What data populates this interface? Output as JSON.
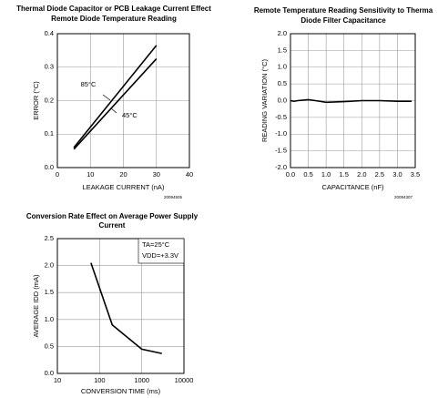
{
  "chart_data": [
    {
      "type": "line",
      "title": [
        "Thermal Diode Capacitor or PCB Leakage Current Effect",
        "Remote Diode Temperature Reading"
      ],
      "xlabel": "LEAKAGE CURRENT (nA)",
      "ylabel": "ERROR (°C)",
      "x": [
        5,
        30
      ],
      "series": [
        {
          "name": "85°C",
          "color": "#000000",
          "values": [
            0.06,
            0.365
          ]
        },
        {
          "name": "45°C",
          "color": "#000000",
          "values": [
            0.055,
            0.325
          ]
        }
      ],
      "xlim": [
        0,
        40
      ],
      "xticks": [
        0,
        10,
        20,
        30,
        40
      ],
      "ylim": [
        0,
        0.4
      ],
      "yticks": [
        {
          "value": 0,
          "label": "0.0"
        },
        0.1,
        0.2,
        0.3,
        0.4
      ],
      "grid": true,
      "code": "20094505"
    },
    {
      "type": "line",
      "title": [
        "Remote Temperature Reading Sensitivity to Therma",
        "Diode Filter Capacitance"
      ],
      "xlabel": "CAPACITANCE (nF)",
      "ylabel": "READING VARIATION (°C)",
      "x": [
        0,
        0.1,
        0.2,
        0.5,
        0.7,
        1.0,
        1.5,
        2.0,
        2.5,
        3.0,
        3.4
      ],
      "series": [
        {
          "color": "#000000",
          "values": [
            0,
            -0.02,
            0,
            0.03,
            0,
            -0.05,
            -0.03,
            0,
            0,
            -0.02,
            -0.02
          ]
        }
      ],
      "xlim": [
        0,
        3.5
      ],
      "xticks": [
        {
          "value": 0,
          "label": "0.0"
        },
        0.5,
        {
          "value": 1,
          "label": "1.0"
        },
        1.5,
        {
          "value": 2,
          "label": "2.0"
        },
        2.5,
        {
          "value": 3,
          "label": "3.0"
        },
        3.5
      ],
      "ylim": [
        -2,
        2
      ],
      "yticks": [
        {
          "value": -2,
          "label": "-2.0"
        },
        -1.5,
        {
          "value": -1,
          "label": "-1.0"
        },
        -0.5,
        {
          "value": 0,
          "label": "0.0"
        },
        0.5,
        {
          "value": 1,
          "label": "1.0"
        },
        1.5,
        {
          "value": 2,
          "label": "2.0"
        }
      ],
      "grid": true,
      "code": "20094307"
    },
    {
      "type": "line",
      "title": [
        "Conversion Rate Effect on Average Power Supply",
        "Current"
      ],
      "xlabel": "CONVERSION TIME (ms)",
      "ylabel": "AVERAGE IDD (mA)",
      "x": [
        62.5,
        200,
        1000,
        3000
      ],
      "series": [
        {
          "color": "#000000",
          "values": [
            2.05,
            0.9,
            0.45,
            0.37
          ]
        }
      ],
      "xscale": "log",
      "xlim": [
        10,
        10000
      ],
      "xticks": [
        10,
        100,
        1000,
        10000
      ],
      "ylim": [
        0,
        2.5
      ],
      "yticks": [
        {
          "value": 0,
          "label": "0.0"
        },
        0.5,
        {
          "value": 1,
          "label": "1.0"
        },
        1.5,
        {
          "value": 2,
          "label": "2.0"
        },
        2.5
      ],
      "grid": true,
      "annotations": [
        "TA=25°C",
        "VDD=+3.3V"
      ]
    }
  ]
}
